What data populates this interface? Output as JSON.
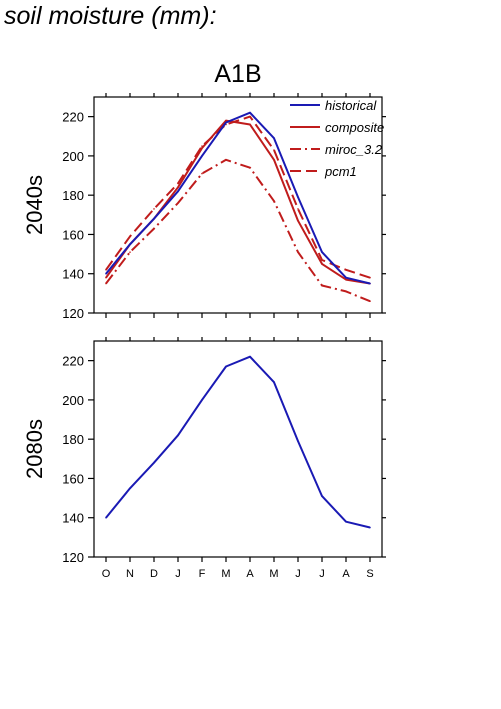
{
  "page": {
    "title": "soil moisture (mm):"
  },
  "colors": {
    "historical": "#1a1ab4",
    "projection": "#c01c1c",
    "axis": "#000000"
  },
  "chart_data": [
    {
      "type": "line",
      "title": "A1B",
      "ylabel": "2040s",
      "xlabel": "",
      "categories": [
        "O",
        "N",
        "D",
        "J",
        "F",
        "M",
        "A",
        "M",
        "J",
        "J",
        "A",
        "S"
      ],
      "ylim": [
        120,
        230
      ],
      "yticks": [
        120,
        140,
        160,
        180,
        200,
        220
      ],
      "legend": "top-right",
      "series": [
        {
          "name": "historical",
          "color": "#1a1ab4",
          "dash": "solid",
          "values": [
            140,
            155,
            168,
            182,
            200,
            217,
            222,
            209,
            179,
            151,
            138,
            135
          ]
        },
        {
          "name": "composite",
          "color": "#c01c1c",
          "dash": "solid",
          "values": [
            138,
            155,
            168,
            184,
            204,
            218,
            216,
            198,
            167,
            145,
            137,
            135
          ]
        },
        {
          "name": "miroc_3.2",
          "color": "#c01c1c",
          "dash": "dashdot",
          "values": [
            135,
            151,
            163,
            176,
            191,
            198,
            194,
            177,
            151,
            134,
            131,
            126
          ]
        },
        {
          "name": "pcm1",
          "color": "#c01c1c",
          "dash": "dash",
          "values": [
            142,
            159,
            173,
            186,
            205,
            216,
            220,
            203,
            173,
            147,
            142,
            138
          ]
        }
      ]
    },
    {
      "type": "line",
      "title": "",
      "ylabel": "2080s",
      "xlabel": "",
      "categories": [
        "O",
        "N",
        "D",
        "J",
        "F",
        "M",
        "A",
        "M",
        "J",
        "J",
        "A",
        "S"
      ],
      "ylim": [
        120,
        230
      ],
      "yticks": [
        120,
        140,
        160,
        180,
        200,
        220
      ],
      "series": [
        {
          "name": "historical",
          "color": "#1a1ab4",
          "dash": "solid",
          "values": [
            140,
            155,
            168,
            182,
            200,
            217,
            222,
            209,
            179,
            151,
            138,
            135
          ]
        }
      ]
    }
  ]
}
